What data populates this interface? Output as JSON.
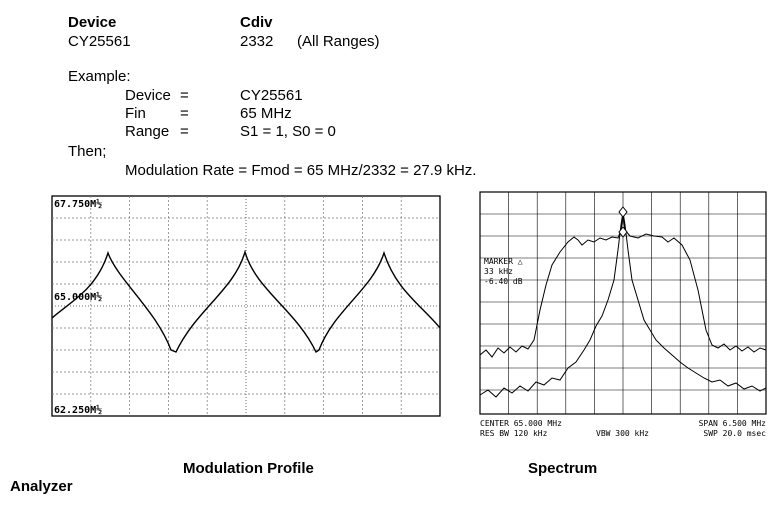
{
  "device_table": {
    "device_header": "Device",
    "cdiv_header": "Cdiv",
    "device_value": "CY25561",
    "cdiv_value": "2332",
    "cdiv_note": "(All Ranges)"
  },
  "example": {
    "heading": "Example:",
    "rows": [
      {
        "label": "Device",
        "eq": "=",
        "value": "CY25561"
      },
      {
        "label": "Fin",
        "eq": "=",
        "value": "65 MHz"
      },
      {
        "label": "Range",
        "eq": "=",
        "value": "S1 = 1, S0 = 0"
      }
    ],
    "then": "Then;",
    "formula": "Modulation Rate = Fmod = 65 MHz/2332 = 27.9 kHz."
  },
  "modulation_profile": {
    "top_label": "67.750M½",
    "mid_label": "65.000M½",
    "bottom_label": "62.250M½",
    "caption": "Modulation Profile"
  },
  "spectrum": {
    "marker_title": "MARKER △",
    "marker_freq": "33 kHz",
    "marker_db": "-6.40 dB",
    "center": "CENTER 65.000 MHz",
    "res_bw": "RES BW 120 kHz",
    "vbw": "VBW 300 kHz",
    "span": "SPAN 6.500 MHz",
    "swp": "SWP 20.0 msec",
    "caption": "Spectrum"
  },
  "footer": {
    "analyzer": "Analyzer"
  }
}
